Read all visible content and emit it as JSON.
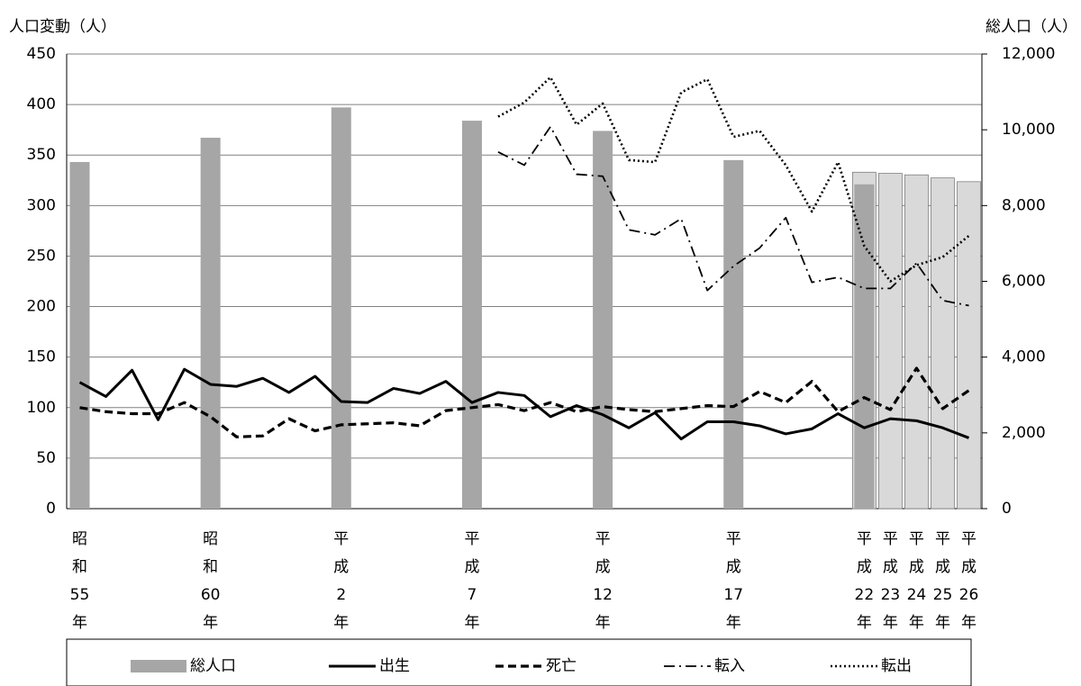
{
  "chart_data": {
    "type": "bar-line",
    "y_label": "人口変動（人）",
    "y2_label": "総人口（人）",
    "categories": [
      "昭\n和\n55\n年",
      null,
      null,
      null,
      null,
      "昭\n和\n60\n年",
      null,
      null,
      null,
      null,
      "平\n成\n2\n年",
      null,
      null,
      null,
      null,
      "平\n成\n7\n年",
      null,
      null,
      null,
      null,
      "平\n成\n12\n年",
      null,
      null,
      null,
      null,
      "平\n成\n17\n年",
      null,
      null,
      null,
      null,
      "平\n成\n22\n年",
      "平\n成\n23\n年",
      "平\n成\n24\n年",
      "平\n成\n25\n年",
      "平\n成\n26\n年"
    ],
    "ylim": [
      0,
      450
    ],
    "yticks": [
      0,
      50,
      100,
      150,
      200,
      250,
      300,
      350,
      400,
      450
    ],
    "y2lim": [
      0,
      12000
    ],
    "y2ticks": [
      0,
      {
        "value": 2000,
        "label": "2,000"
      },
      {
        "value": 4000,
        "label": "4,000"
      },
      {
        "value": 6000,
        "label": "6,000"
      },
      {
        "value": 8000,
        "label": "8,000"
      },
      {
        "value": 10000,
        "label": "10,000"
      },
      {
        "value": 12000,
        "label": "12,000"
      }
    ],
    "grid": true,
    "series": [
      {
        "name": "総人口",
        "type": "bar",
        "axis": "y2",
        "color": "#a6a6a6",
        "values": [
          9150,
          null,
          null,
          null,
          null,
          9790,
          null,
          null,
          null,
          null,
          10590,
          null,
          null,
          null,
          null,
          10240,
          null,
          null,
          null,
          null,
          9970,
          null,
          null,
          null,
          null,
          9200,
          null,
          null,
          null,
          null,
          8560,
          null,
          null,
          null,
          null
        ]
      },
      {
        "type": "bar",
        "axis": "y2",
        "color": "#d9d9d9",
        "values": [
          null,
          null,
          null,
          null,
          null,
          null,
          null,
          null,
          null,
          null,
          null,
          null,
          null,
          null,
          null,
          null,
          null,
          null,
          null,
          null,
          null,
          null,
          null,
          null,
          null,
          null,
          null,
          null,
          null,
          null,
          8880,
          8850,
          8810,
          8730,
          8630
        ]
      },
      {
        "name": "出生",
        "type": "line",
        "dash": "solid",
        "color": "#000000",
        "values": [
          125,
          111,
          137,
          88,
          138,
          123,
          121,
          129,
          115,
          131,
          106,
          105,
          119,
          114,
          126,
          105,
          115,
          112,
          91,
          102,
          93,
          80,
          95,
          69,
          86,
          86,
          82,
          74,
          79,
          94,
          80,
          89,
          87,
          80,
          70
        ]
      },
      {
        "name": "死亡",
        "type": "line",
        "dash": "dashed",
        "color": "#000000",
        "values": [
          100,
          96,
          94,
          94,
          105,
          91,
          71,
          72,
          89,
          77,
          83,
          84,
          85,
          82,
          97,
          100,
          103,
          97,
          105,
          96,
          101,
          98,
          96,
          99,
          102,
          101,
          116,
          105,
          126,
          96,
          110,
          98,
          139,
          99,
          117
        ]
      },
      {
        "name": "転入",
        "type": "line",
        "dash": "dashdot",
        "color": "#000000",
        "values": [
          null,
          null,
          null,
          null,
          null,
          null,
          null,
          null,
          null,
          null,
          null,
          null,
          null,
          null,
          null,
          null,
          353,
          340,
          378,
          331,
          329,
          276,
          271,
          287,
          216,
          240,
          258,
          288,
          224,
          229,
          218,
          218,
          243,
          206,
          201
        ]
      },
      {
        "name": "転出",
        "type": "line",
        "dash": "dotted",
        "color": "#000000",
        "values": [
          null,
          null,
          null,
          null,
          null,
          null,
          null,
          null,
          null,
          null,
          null,
          null,
          null,
          null,
          null,
          null,
          388,
          402,
          427,
          380,
          401,
          345,
          343,
          412,
          425,
          368,
          374,
          340,
          294,
          343,
          260,
          225,
          241,
          249,
          270
        ]
      }
    ]
  }
}
